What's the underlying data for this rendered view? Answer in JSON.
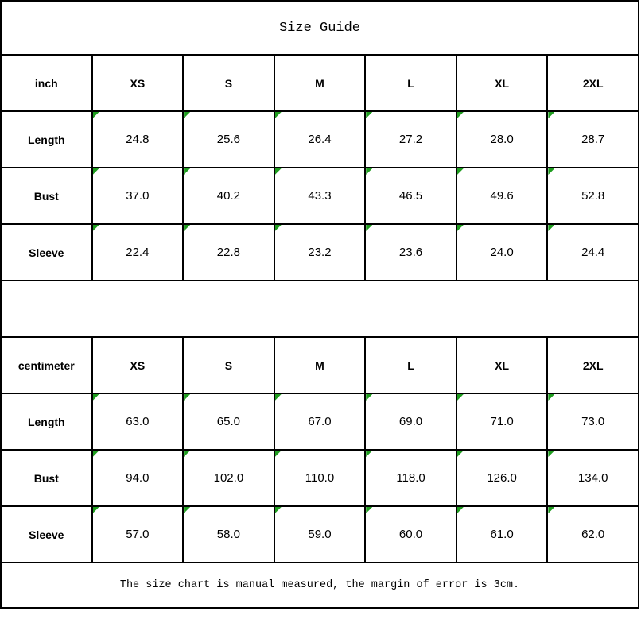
{
  "title": "Size Guide",
  "tables": [
    {
      "unit": "inch",
      "sizes": [
        "XS",
        "S",
        "M",
        "L",
        "XL",
        "2XL"
      ],
      "rows": [
        {
          "label": "Length",
          "values": [
            "24.8",
            "25.6",
            "26.4",
            "27.2",
            "28.0",
            "28.7"
          ]
        },
        {
          "label": "Bust",
          "values": [
            "37.0",
            "40.2",
            "43.3",
            "46.5",
            "49.6",
            "52.8"
          ]
        },
        {
          "label": "Sleeve",
          "values": [
            "22.4",
            "22.8",
            "23.2",
            "23.6",
            "24.0",
            "24.4"
          ]
        }
      ]
    },
    {
      "unit": "centimeter",
      "sizes": [
        "XS",
        "S",
        "M",
        "L",
        "XL",
        "2XL"
      ],
      "rows": [
        {
          "label": "Length",
          "values": [
            "63.0",
            "65.0",
            "67.0",
            "69.0",
            "71.0",
            "73.0"
          ]
        },
        {
          "label": "Bust",
          "values": [
            "94.0",
            "102.0",
            "110.0",
            "118.0",
            "126.0",
            "134.0"
          ]
        },
        {
          "label": "Sleeve",
          "values": [
            "57.0",
            "58.0",
            "59.0",
            "60.0",
            "61.0",
            "62.0"
          ]
        }
      ]
    }
  ],
  "footer_note": "The size chart is manual measured, the margin of error is 3cm.",
  "colors": {
    "triangle_green": "#1f9d1f",
    "border_color": "#000000",
    "text_color": "#000000",
    "background": "#ffffff"
  }
}
